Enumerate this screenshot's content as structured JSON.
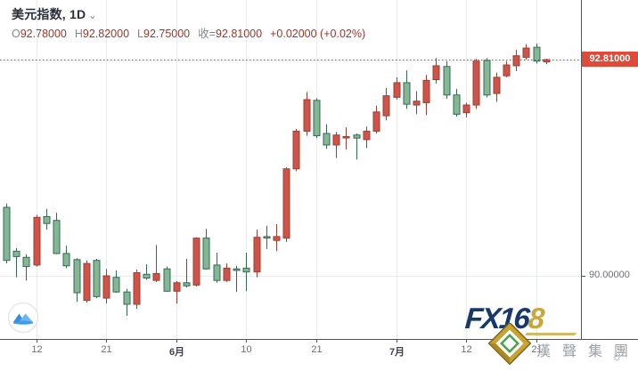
{
  "header": {
    "title": "美元指数, 1D",
    "chevron": "⌄"
  },
  "legend": {
    "o_label": "O",
    "o_value": "92.78000",
    "h_label": "H",
    "h_value": "92.82000",
    "l_label": "L",
    "l_value": "92.75000",
    "close_label": "收=",
    "close_value": "92.81000",
    "change_value": "+0.02000 (+0.02%)"
  },
  "price_axis": {
    "gridline_label": "90.00000",
    "current_price_label": "92.81000"
  },
  "watermark": {
    "fx_prefix": "FX16",
    "fx_suffix": "8",
    "hansheng": "漢聲集團",
    "sun": "☼"
  },
  "colors": {
    "up_fill": "#cf5349",
    "up_border": "#9e3d33",
    "down_fill": "#84b894",
    "down_border": "#356853",
    "grid": "#e9ecef",
    "axis_line": "#50535e",
    "price_line": "#b0453a",
    "price_tag_bg": "#e04a38",
    "axis_text": "#6a6e79",
    "legend_value_red": "#99362b",
    "fx_navy": "#16386b",
    "fx_gold": "#c8a83c",
    "tv_blue": "#3d9be9"
  },
  "chart_data": {
    "type": "candlestick",
    "title": "美元指数, 1D",
    "symbol": "美元指数",
    "interval": "1D",
    "legend_position": "top-left",
    "grid": "on",
    "ylim": [
      89.18,
      93.58
    ],
    "h_gridlines": [
      90.0
    ],
    "y_axis_labels": [
      "90.00000"
    ],
    "price_line": 92.81,
    "current": {
      "open": 92.78,
      "high": 92.82,
      "low": 92.75,
      "close": 92.81,
      "change": "+0.02000",
      "change_pct": "+0.02%"
    },
    "x_axis_labels": [
      {
        "index": 3,
        "text": "12",
        "bold": false
      },
      {
        "index": 10,
        "text": "21",
        "bold": false
      },
      {
        "index": 17,
        "text": "6月",
        "bold": true
      },
      {
        "index": 24,
        "text": "10",
        "bold": false
      },
      {
        "index": 31,
        "text": "21",
        "bold": false
      },
      {
        "index": 39,
        "text": "7月",
        "bold": true
      },
      {
        "index": 46,
        "text": "12",
        "bold": false
      },
      {
        "index": 53,
        "text": "21",
        "bold": false
      }
    ],
    "candles_format": [
      "open",
      "high",
      "low",
      "close"
    ],
    "candles": [
      [
        90.89,
        90.94,
        90.16,
        90.2
      ],
      [
        90.32,
        90.36,
        89.98,
        90.25
      ],
      [
        90.24,
        90.28,
        89.94,
        90.12
      ],
      [
        90.14,
        90.79,
        90.12,
        90.76
      ],
      [
        90.77,
        90.87,
        90.6,
        90.68
      ],
      [
        90.72,
        90.82,
        90.28,
        90.29
      ],
      [
        90.29,
        90.39,
        90.1,
        90.13
      ],
      [
        90.21,
        90.23,
        89.66,
        89.78
      ],
      [
        89.68,
        90.2,
        89.65,
        90.16
      ],
      [
        90.2,
        90.22,
        89.71,
        89.73
      ],
      [
        89.71,
        90.09,
        89.64,
        90.0
      ],
      [
        89.98,
        90.07,
        89.78,
        89.79
      ],
      [
        89.79,
        89.83,
        89.48,
        89.63
      ],
      [
        89.63,
        90.08,
        89.57,
        90.04
      ],
      [
        90.02,
        90.15,
        89.95,
        89.97
      ],
      [
        89.94,
        90.4,
        89.92,
        90.03
      ],
      [
        90.09,
        90.12,
        89.79,
        89.8
      ],
      [
        89.8,
        89.93,
        89.64,
        89.91
      ],
      [
        89.91,
        90.22,
        89.85,
        89.87
      ],
      [
        89.88,
        90.5,
        89.86,
        90.49
      ],
      [
        90.49,
        90.61,
        90.08,
        90.09
      ],
      [
        90.14,
        90.3,
        89.91,
        89.94
      ],
      [
        89.94,
        90.16,
        89.92,
        90.1
      ],
      [
        90.09,
        90.13,
        89.79,
        90.07
      ],
      [
        90.1,
        90.3,
        89.8,
        90.05
      ],
      [
        90.05,
        90.6,
        89.98,
        90.5
      ],
      [
        90.51,
        90.65,
        90.35,
        90.5
      ],
      [
        90.46,
        90.67,
        90.32,
        90.51
      ],
      [
        90.49,
        91.41,
        90.44,
        91.39
      ],
      [
        91.39,
        91.91,
        91.36,
        91.88
      ],
      [
        91.88,
        92.39,
        91.82,
        92.29
      ],
      [
        92.28,
        92.31,
        91.79,
        91.82
      ],
      [
        91.85,
        91.97,
        91.65,
        91.7
      ],
      [
        91.7,
        91.87,
        91.53,
        91.83
      ],
      [
        91.8,
        91.93,
        91.64,
        91.81
      ],
      [
        91.83,
        91.85,
        91.51,
        91.79
      ],
      [
        91.77,
        91.94,
        91.66,
        91.88
      ],
      [
        91.88,
        92.21,
        91.85,
        92.13
      ],
      [
        92.08,
        92.44,
        92.02,
        92.34
      ],
      [
        92.32,
        92.58,
        92.29,
        92.51
      ],
      [
        92.51,
        92.67,
        92.17,
        92.23
      ],
      [
        92.22,
        92.4,
        92.1,
        92.27
      ],
      [
        92.25,
        92.61,
        92.09,
        92.54
      ],
      [
        92.55,
        92.83,
        92.5,
        92.73
      ],
      [
        92.72,
        92.79,
        92.3,
        92.35
      ],
      [
        92.35,
        92.43,
        92.07,
        92.1
      ],
      [
        92.12,
        92.25,
        92.06,
        92.22
      ],
      [
        92.22,
        92.82,
        92.17,
        92.79
      ],
      [
        92.8,
        92.83,
        92.32,
        92.35
      ],
      [
        92.37,
        92.64,
        92.26,
        92.58
      ],
      [
        92.6,
        92.79,
        92.58,
        92.74
      ],
      [
        92.73,
        92.94,
        92.66,
        92.86
      ],
      [
        92.84,
        93.01,
        92.81,
        92.96
      ],
      [
        92.97,
        93.02,
        92.76,
        92.79
      ],
      [
        92.78,
        92.82,
        92.75,
        92.81
      ]
    ]
  }
}
